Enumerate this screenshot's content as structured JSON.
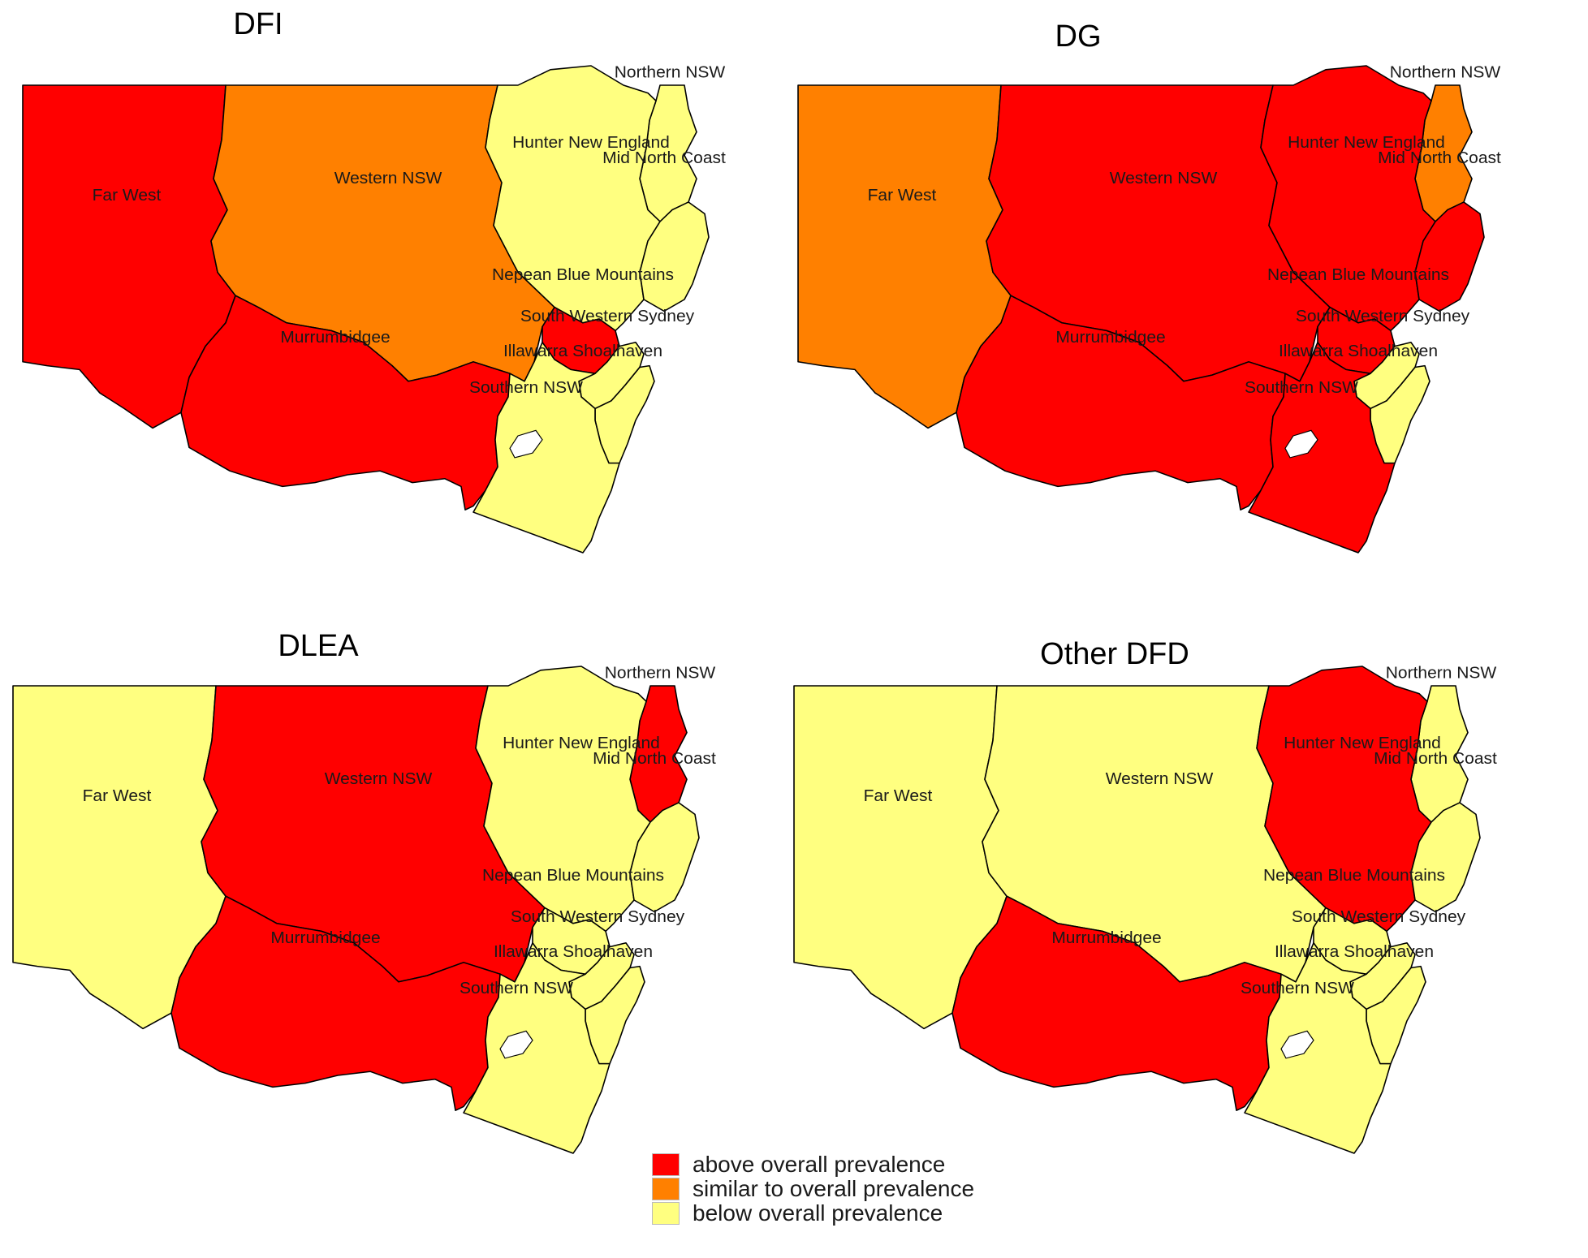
{
  "colors": {
    "above": "#ff0000",
    "similar": "#ff8000",
    "below": "#ffff80"
  },
  "region_labels": {
    "far_west": "Far West",
    "western_nsw": "Western NSW",
    "northern_nsw": "Northern NSW",
    "hunter_new_england": "Hunter New England",
    "mid_north_coast": "Mid North Coast",
    "nepean_blue_mountains": "Nepean Blue Mountains",
    "south_western_sydney": "South Western Sydney",
    "murrumbidgee": "Murrumbidgee",
    "illawarra_shoalhaven": "Illawarra Shoalhaven",
    "southern_nsw": "Southern NSW"
  },
  "panels": [
    {
      "title": "DFI",
      "categories": {
        "far_west": "above",
        "western_nsw": "similar",
        "northern_nsw": "below",
        "hunter_new_england": "below",
        "mid_north_coast": "below",
        "nepean_blue_mountains": "above",
        "south_western_sydney": "below",
        "murrumbidgee": "above",
        "illawarra_shoalhaven": "below",
        "southern_nsw": "below"
      }
    },
    {
      "title": "DG",
      "categories": {
        "far_west": "similar",
        "western_nsw": "above",
        "northern_nsw": "similar",
        "hunter_new_england": "above",
        "mid_north_coast": "above",
        "nepean_blue_mountains": "above",
        "south_western_sydney": "below",
        "murrumbidgee": "above",
        "illawarra_shoalhaven": "below",
        "southern_nsw": "above"
      }
    },
    {
      "title": "DLEA",
      "categories": {
        "far_west": "below",
        "western_nsw": "above",
        "northern_nsw": "above",
        "hunter_new_england": "below",
        "mid_north_coast": "below",
        "nepean_blue_mountains": "below",
        "south_western_sydney": "below",
        "murrumbidgee": "above",
        "illawarra_shoalhaven": "below",
        "southern_nsw": "below"
      }
    },
    {
      "title": "Other DFD",
      "categories": {
        "far_west": "below",
        "western_nsw": "below",
        "northern_nsw": "below",
        "hunter_new_england": "above",
        "mid_north_coast": "below",
        "nepean_blue_mountains": "below",
        "south_western_sydney": "below",
        "murrumbidgee": "above",
        "illawarra_shoalhaven": "below",
        "southern_nsw": "below"
      }
    }
  ],
  "legend": [
    {
      "key": "above",
      "label": "above overall prevalence"
    },
    {
      "key": "similar",
      "label": "similar to overall prevalence"
    },
    {
      "key": "below",
      "label": "below overall prevalence"
    }
  ]
}
